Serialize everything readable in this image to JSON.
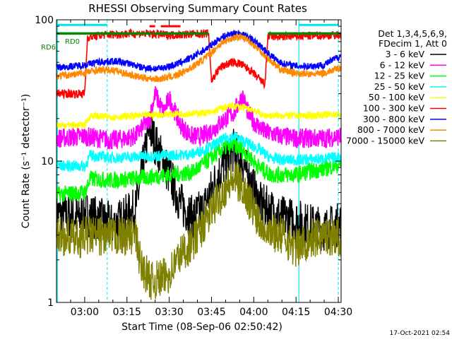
{
  "chart_data": {
    "type": "line",
    "title": "RHESSI Observing Summary Count Rates",
    "xlabel": "Start Time (08-Sep-06 02:50:42)",
    "ylabel": "Count Rate (s⁻¹ detector⁻¹)",
    "y_scale": "log",
    "ylim": [
      1,
      100
    ],
    "xlim_minutes_after_0250": [
      0,
      101
    ],
    "x_ticks": [
      {
        "label": "03:00",
        "minute": 10
      },
      {
        "label": "03:15",
        "minute": 25
      },
      {
        "label": "03:30",
        "minute": 40
      },
      {
        "label": "03:45",
        "minute": 55
      },
      {
        "label": "04:00",
        "minute": 70
      },
      {
        "label": "04:15",
        "minute": 85
      },
      {
        "label": "04:30",
        "minute": 100
      }
    ],
    "y_ticks": [
      {
        "label": "1",
        "value": 1
      },
      {
        "label": "10",
        "value": 10
      },
      {
        "label": "100",
        "value": 100
      }
    ],
    "legend": {
      "header_lines": [
        "Det 1,3,4,5,6,9,",
        "FDecim 1, Att 0"
      ],
      "placement": "right"
    },
    "annotations": {
      "rd0": "RD0",
      "rd6": "RD6",
      "flag_f": "F",
      "timestamp": "17-Oct-2021 02:54"
    },
    "colors": {
      "attenuator_bar": "#00e6e6",
      "rd_bar": "#008800",
      "flag_bar": "#ff0000",
      "saa_vlines": "#00e6e6"
    },
    "series": [
      {
        "name": "3 - 6 keV",
        "color": "#000000",
        "t": [
          0,
          8,
          10,
          20,
          28,
          33,
          36,
          40,
          44,
          48,
          52,
          56,
          60,
          63,
          66,
          69,
          72,
          76,
          80,
          85,
          90,
          95,
          101
        ],
        "values": [
          4.2,
          4.0,
          4.3,
          3.5,
          4.5,
          17,
          12,
          8,
          5,
          4,
          4.5,
          7,
          10,
          12,
          10,
          7,
          5,
          4.5,
          4,
          3.8,
          3.5,
          3.3,
          3.6
        ]
      },
      {
        "name": "6 - 12 keV",
        "color": "#ff00ff",
        "t": [
          0,
          10,
          20,
          28,
          33,
          35,
          38,
          40,
          44,
          48,
          52,
          56,
          60,
          63,
          66,
          68,
          70,
          74,
          80,
          85,
          90,
          95,
          101
        ],
        "values": [
          14.5,
          15,
          14,
          15,
          20,
          30,
          22,
          28,
          18,
          15,
          15,
          17,
          20,
          22,
          29,
          22,
          19,
          16,
          15,
          14.5,
          14.5,
          14.5,
          15
        ]
      },
      {
        "name": "12 - 25 keV",
        "color": "#00ff00",
        "t": [
          0,
          10,
          12,
          20,
          30,
          40,
          48,
          52,
          56,
          60,
          63,
          66,
          69,
          72,
          76,
          80,
          85,
          90,
          95,
          101
        ],
        "values": [
          5.8,
          6,
          7.5,
          7.3,
          7.6,
          8,
          8.3,
          9.5,
          11,
          12.5,
          13,
          12,
          10.5,
          9,
          8,
          8,
          8,
          8.5,
          8.8,
          9.6
        ]
      },
      {
        "name": "25 - 50 keV",
        "color": "#00ffff",
        "t": [
          0,
          10,
          12,
          20,
          30,
          40,
          48,
          52,
          56,
          60,
          63,
          66,
          69,
          72,
          76,
          80,
          85,
          90,
          95,
          101
        ],
        "values": [
          9.3,
          9.2,
          11,
          10.5,
          10.8,
          11,
          11.2,
          12,
          13,
          14.5,
          15,
          14,
          13,
          12,
          10.5,
          10.2,
          10.2,
          10.3,
          10.4,
          10.7
        ]
      },
      {
        "name": "50 - 100 keV",
        "color": "#ffff00",
        "t": [
          0,
          10,
          12,
          20,
          30,
          40,
          54,
          55,
          58,
          62,
          64,
          66,
          70,
          72,
          73,
          80,
          90,
          101
        ],
        "values": [
          18,
          18,
          21,
          20.5,
          21,
          21.5,
          22,
          22,
          23.5,
          24.5,
          24.5,
          24,
          23,
          22,
          21,
          21,
          21,
          21.5
        ]
      },
      {
        "name": "100 - 300 keV",
        "color": "#ff0000",
        "t": [
          0,
          10,
          11,
          16,
          20,
          30,
          40,
          48,
          54,
          55,
          58,
          62,
          65,
          68,
          72,
          74,
          75,
          80,
          90,
          101
        ],
        "values": [
          30,
          30,
          75,
          78,
          79,
          80,
          78,
          79,
          80,
          37,
          46,
          50,
          49,
          45,
          38,
          35,
          76,
          76,
          77,
          78
        ]
      },
      {
        "name": "300 - 800 keV",
        "color": "#0000ff",
        "t": [
          0,
          6,
          10,
          14,
          20,
          26,
          30,
          36,
          42,
          48,
          54,
          58,
          62,
          65,
          68,
          72,
          76,
          80,
          85,
          90,
          95,
          101
        ],
        "values": [
          46,
          47,
          48,
          50,
          51,
          49,
          46,
          45,
          48,
          54,
          64,
          74,
          80,
          80,
          76,
          66,
          56,
          49,
          47,
          47,
          48,
          56
        ]
      },
      {
        "name": "800 - 7000 keV",
        "color": "#ff8800",
        "t": [
          0,
          6,
          10,
          14,
          20,
          26,
          30,
          36,
          42,
          48,
          54,
          58,
          62,
          65,
          68,
          72,
          76,
          80,
          85,
          90,
          95,
          101
        ],
        "values": [
          40,
          41,
          42,
          44,
          44,
          41,
          39,
          38,
          40,
          46,
          56,
          67,
          74,
          76,
          72,
          61,
          51,
          44,
          42,
          41,
          42,
          46
        ]
      },
      {
        "name": "7000 - 15000 keV",
        "color": "#808000",
        "t": [
          0,
          8,
          10,
          20,
          28,
          30,
          34,
          38,
          40,
          44,
          48,
          52,
          56,
          60,
          63,
          66,
          69,
          72,
          76,
          80,
          85,
          90,
          95,
          101
        ],
        "values": [
          3,
          2.8,
          3,
          2.9,
          3,
          1.8,
          1.4,
          1.5,
          1.6,
          2.2,
          2.6,
          3.5,
          4.8,
          6.5,
          7.5,
          6.5,
          5,
          3.8,
          3.2,
          3.0,
          2.4,
          2.8,
          3,
          2.9
        ]
      }
    ]
  }
}
